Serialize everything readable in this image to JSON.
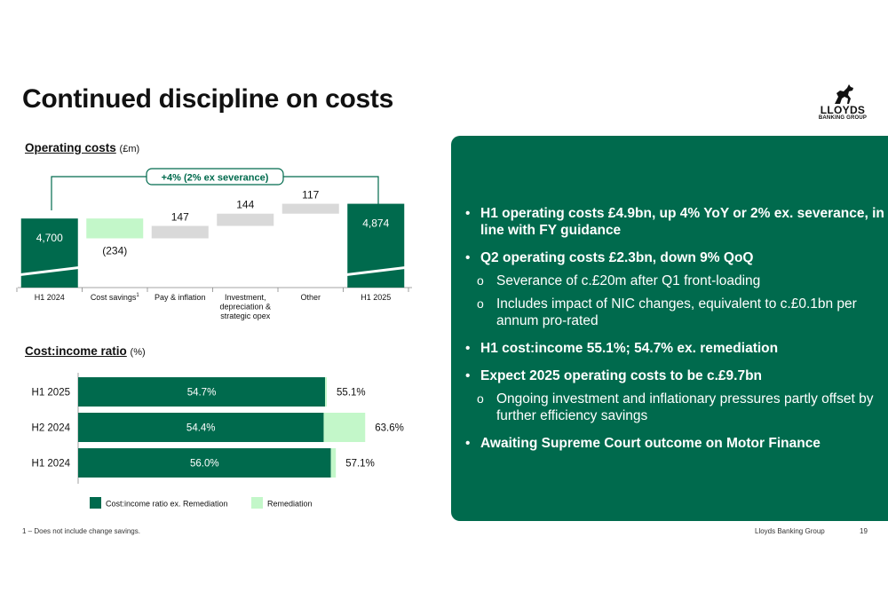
{
  "title": "Continued discipline on costs",
  "logo": {
    "line1": "LLOYDS",
    "line2": "BANKING GROUP"
  },
  "operating_costs": {
    "heading": "Operating costs",
    "unit": "(£m)",
    "bracket_label": "+4% (2% ex severance)"
  },
  "cost_income": {
    "heading": "Cost:income ratio",
    "unit": "(%)"
  },
  "chart_data": [
    {
      "type": "bar",
      "subtype": "waterfall",
      "categories": [
        "H1 2024",
        "Cost savings",
        "Pay & inflation",
        "Investment, depreciation & strategic opex",
        "Other",
        "H1 2025"
      ],
      "values": [
        4700,
        -234,
        147,
        144,
        117,
        4874
      ],
      "data_labels": [
        "4,700",
        "(234)",
        "147",
        "144",
        "117",
        "4,874"
      ],
      "cost_savings_superscript": "1",
      "axis_broken": true,
      "title": "Operating costs",
      "ylabel": "(£m)",
      "colors": {
        "total": "#006a4d",
        "decrease": "#c3f7c9",
        "increase": "#d9d9d9"
      }
    },
    {
      "type": "bar",
      "orientation": "horizontal",
      "stacked": true,
      "categories": [
        "H1 2025",
        "H2 2024",
        "H1 2024"
      ],
      "series": [
        {
          "name": "Cost:income ratio ex. Remediation",
          "values": [
            54.7,
            54.4,
            56.0
          ],
          "labels": [
            "54.7%",
            "54.4%",
            "56.0%"
          ],
          "color": "#006a4d"
        },
        {
          "name": "Remediation",
          "values": [
            0.4,
            9.2,
            1.1
          ],
          "color": "#c3f7c9"
        }
      ],
      "totals": [
        55.1,
        63.6,
        57.1
      ],
      "total_labels": [
        "55.1%",
        "63.6%",
        "57.1%"
      ],
      "title": "Cost:income ratio",
      "ylabel": "(%)",
      "legend": "bottom"
    }
  ],
  "bullets": [
    {
      "text": "H1 operating costs £4.9bn, up 4% YoY or 2% ex. severance, in line with FY guidance",
      "subs": []
    },
    {
      "text": "Q2 operating costs £2.3bn, down 9% QoQ",
      "subs": [
        "Severance of c.£20m after Q1 front-loading",
        "Includes impact of NIC changes, equivalent to c.£0.1bn per annum pro-rated"
      ]
    },
    {
      "text": "H1 cost:income 55.1%; 54.7% ex. remediation",
      "subs": []
    },
    {
      "text": "Expect 2025 operating costs to be c.£9.7bn",
      "subs": [
        "Ongoing investment and inflationary pressures partly offset by further efficiency savings"
      ]
    },
    {
      "text": "Awaiting Supreme Court outcome on Motor Finance",
      "subs": []
    }
  ],
  "footnote": "1 – Does not include change savings.",
  "footer": {
    "org": "Lloyds Banking Group",
    "page": "19"
  }
}
